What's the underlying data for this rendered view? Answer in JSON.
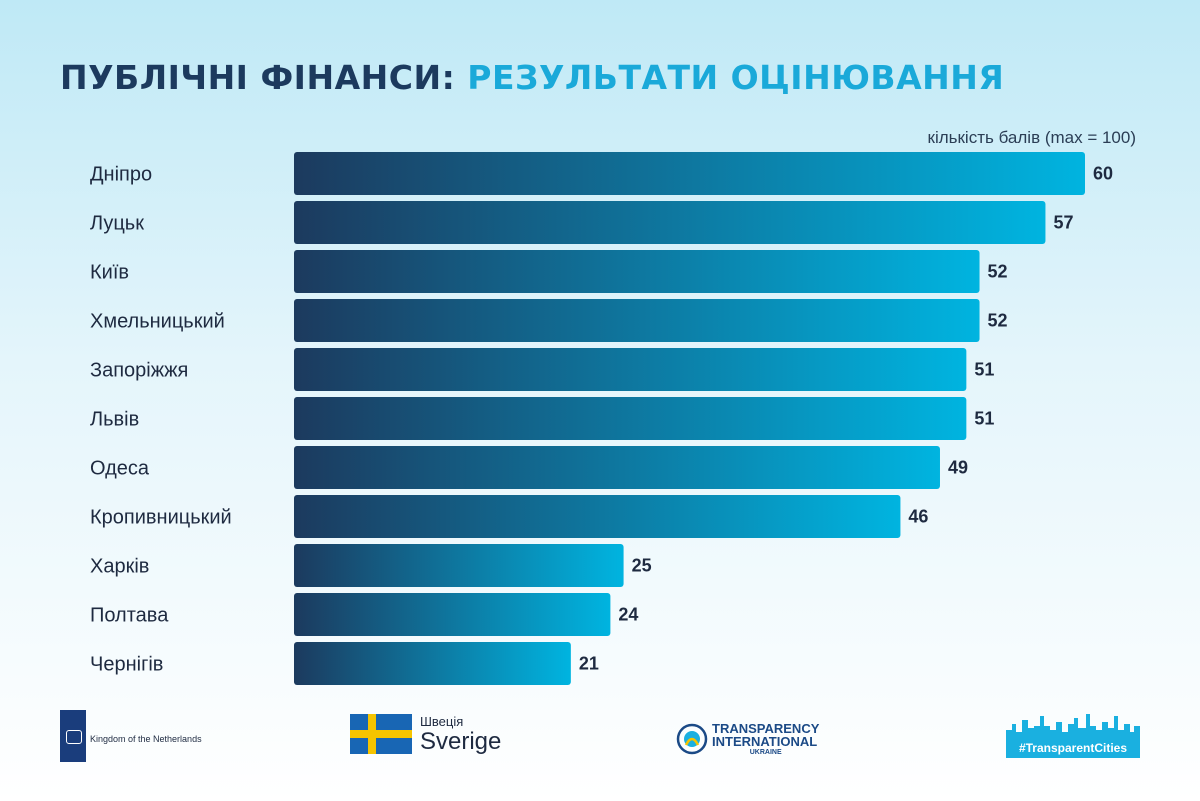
{
  "title_part1": "ПУБЛІЧНІ ФІНАНСИ:",
  "title_part2": "РЕЗУЛЬТАТИ ОЦІНЮВАННЯ",
  "unit_label": "кількість балів (max = 100)",
  "chart_data": {
    "type": "bar",
    "orientation": "horizontal",
    "categories": [
      "Дніпро",
      "Луцьк",
      "Київ",
      "Хмельницький",
      "Запоріжжя",
      "Львів",
      "Одеса",
      "Кропивницький",
      "Харків",
      "Полтава",
      "Чернігів"
    ],
    "values": [
      60,
      57,
      52,
      52,
      51,
      51,
      49,
      46,
      25,
      24,
      21
    ],
    "xlabel": "кількість балів (max = 100)",
    "xlim": [
      0,
      60
    ],
    "grid": false,
    "legend": "none",
    "bar_gradient": [
      "#1c3a5e",
      "#00b4e0"
    ]
  },
  "colors": {
    "title_dark": "#1c3a5e",
    "title_accent": "#1aa9d9",
    "bar_start": "#1c3a5e",
    "bar_end": "#00b4e0"
  },
  "logos": {
    "netherlands": "Kingdom of the Netherlands",
    "sweden_small": "Швеція",
    "sweden_big": "Sverige",
    "ti_line1": "TRANSPARENCY",
    "ti_line2": "INTERNATIONAL",
    "ti_line3": "UKRAINE",
    "transparent_cities": "#TransparentCities"
  }
}
